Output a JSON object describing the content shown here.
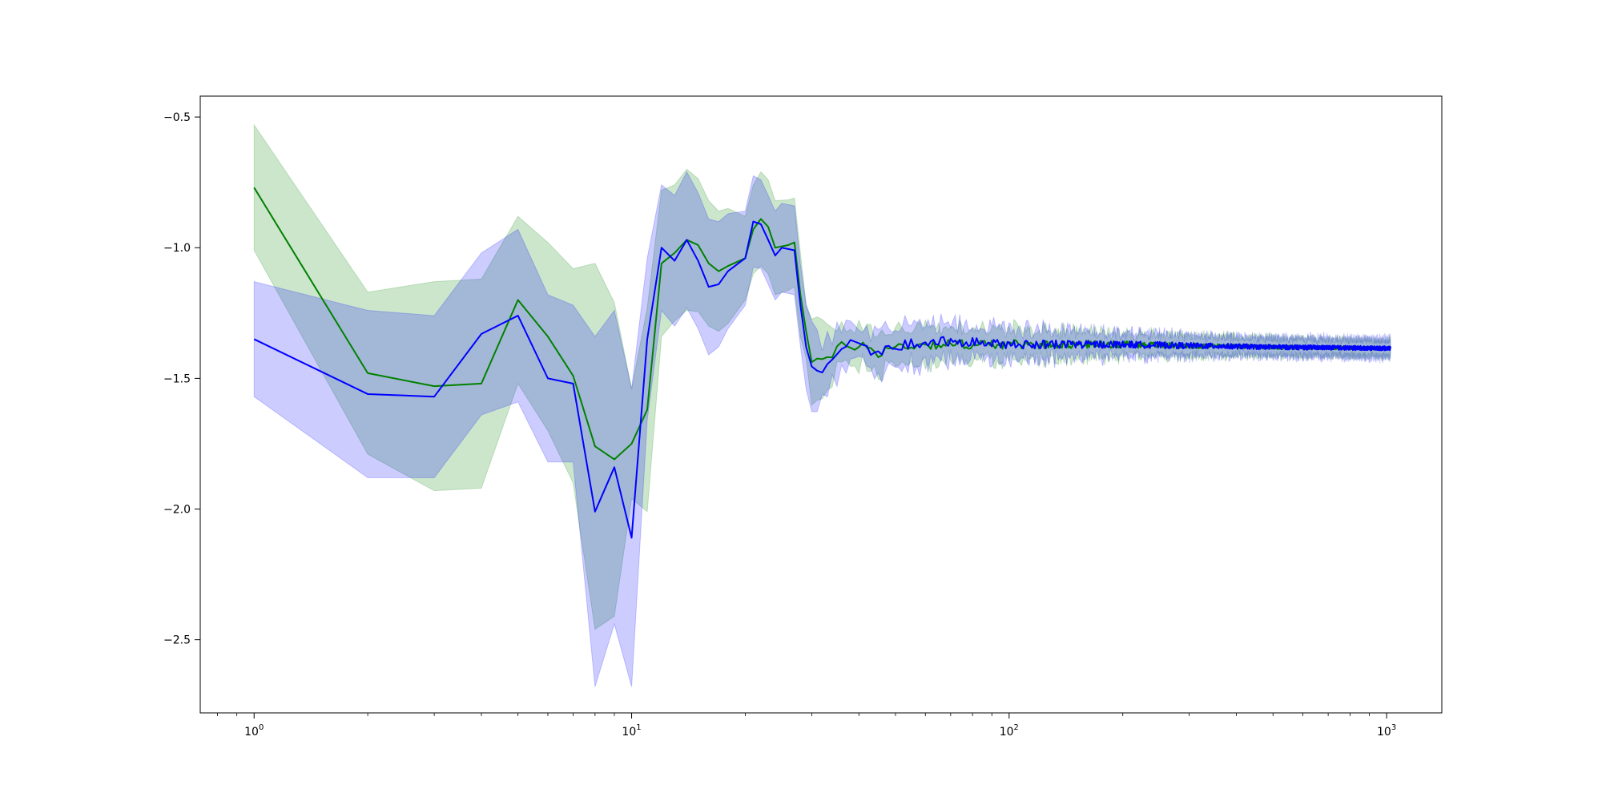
{
  "chart_data": {
    "type": "line",
    "title": "",
    "xlabel": "",
    "ylabel": "",
    "xscale": "log",
    "xlim": [
      0.72,
      1400
    ],
    "ylim": [
      -2.78,
      -0.42
    ],
    "grid": false,
    "legend": "none",
    "x_ticks": [
      {
        "value": 1,
        "base": "10",
        "exp": "0"
      },
      {
        "value": 10,
        "base": "10",
        "exp": "1"
      },
      {
        "value": 100,
        "base": "10",
        "exp": "2"
      },
      {
        "value": 1000,
        "base": "10",
        "exp": "3"
      }
    ],
    "y_ticks": [
      {
        "value": -0.5,
        "label": "−0.5"
      },
      {
        "value": -1.0,
        "label": "−1.0"
      },
      {
        "value": -1.5,
        "label": "−1.5"
      },
      {
        "value": -2.0,
        "label": "−2.0"
      },
      {
        "value": -2.5,
        "label": "−2.5"
      }
    ],
    "noise_tail": {
      "x_start": 28,
      "x_end": 1024,
      "step": 1
    },
    "series": [
      {
        "color": "#008000",
        "band_color": "#008000",
        "band_opacity": 0.2,
        "key_points": [
          [
            1,
            -0.77
          ],
          [
            2,
            -1.48
          ],
          [
            3,
            -1.53
          ],
          [
            4,
            -1.52
          ],
          [
            5,
            -1.2
          ],
          [
            6,
            -1.34
          ],
          [
            7,
            -1.49
          ],
          [
            8,
            -1.76
          ],
          [
            9,
            -1.81
          ],
          [
            10,
            -1.75
          ],
          [
            11,
            -1.62
          ],
          [
            12,
            -1.06
          ],
          [
            13,
            -1.02
          ],
          [
            14,
            -0.97
          ],
          [
            15,
            -0.99
          ],
          [
            16,
            -1.06
          ],
          [
            17,
            -1.09
          ],
          [
            18,
            -1.07
          ],
          [
            20,
            -1.04
          ],
          [
            21,
            -0.93
          ],
          [
            22,
            -0.89
          ],
          [
            23,
            -0.92
          ],
          [
            24,
            -1.0
          ],
          [
            26,
            -0.99
          ],
          [
            27,
            -0.98
          ],
          [
            28,
            -1.18
          ],
          [
            29,
            -1.31
          ],
          [
            30,
            -1.42
          ],
          [
            32,
            -1.43
          ],
          [
            34,
            -1.42
          ],
          [
            36,
            -1.38
          ],
          [
            40,
            -1.37
          ],
          [
            45,
            -1.4
          ],
          [
            50,
            -1.38
          ],
          [
            60,
            -1.37
          ],
          [
            80,
            -1.37
          ],
          [
            100,
            -1.37
          ],
          [
            150,
            -1.37
          ],
          [
            200,
            -1.37
          ],
          [
            300,
            -1.375
          ],
          [
            500,
            -1.38
          ],
          [
            1024,
            -1.385
          ]
        ],
        "band_width": [
          [
            1,
            0.24
          ],
          [
            2,
            0.31
          ],
          [
            3,
            0.4
          ],
          [
            4,
            0.4
          ],
          [
            5,
            0.32
          ],
          [
            6,
            0.36
          ],
          [
            7,
            0.41
          ],
          [
            8,
            0.7
          ],
          [
            9,
            0.6
          ],
          [
            10,
            0.21
          ],
          [
            11,
            0.39
          ],
          [
            12,
            0.28
          ],
          [
            13,
            0.26
          ],
          [
            14,
            0.27
          ],
          [
            16,
            0.24
          ],
          [
            18,
            0.22
          ],
          [
            20,
            0.16
          ],
          [
            22,
            0.18
          ],
          [
            24,
            0.18
          ],
          [
            27,
            0.17
          ],
          [
            30,
            0.14
          ],
          [
            35,
            0.08
          ],
          [
            50,
            0.07
          ],
          [
            100,
            0.055
          ],
          [
            200,
            0.045
          ],
          [
            400,
            0.035
          ],
          [
            1024,
            0.03
          ]
        ],
        "noise_amp": [
          [
            28,
            0.025
          ],
          [
            60,
            0.02
          ],
          [
            150,
            0.015
          ],
          [
            400,
            0.008
          ],
          [
            1024,
            0.006
          ]
        ]
      },
      {
        "color": "#0000ff",
        "band_color": "#0000ff",
        "band_opacity": 0.2,
        "key_points": [
          [
            1,
            -1.35
          ],
          [
            2,
            -1.56
          ],
          [
            3,
            -1.57
          ],
          [
            4,
            -1.33
          ],
          [
            5,
            -1.26
          ],
          [
            6,
            -1.5
          ],
          [
            7,
            -1.52
          ],
          [
            8,
            -2.01
          ],
          [
            9,
            -1.84
          ],
          [
            10,
            -2.11
          ],
          [
            11,
            -1.35
          ],
          [
            12,
            -1.0
          ],
          [
            13,
            -1.05
          ],
          [
            14,
            -0.97
          ],
          [
            15,
            -1.05
          ],
          [
            16,
            -1.15
          ],
          [
            17,
            -1.14
          ],
          [
            18,
            -1.09
          ],
          [
            20,
            -1.04
          ],
          [
            21,
            -0.9
          ],
          [
            22,
            -0.91
          ],
          [
            23,
            -0.97
          ],
          [
            24,
            -1.03
          ],
          [
            25,
            -1.0
          ],
          [
            27,
            -1.01
          ],
          [
            28,
            -1.22
          ],
          [
            29,
            -1.36
          ],
          [
            30,
            -1.46
          ],
          [
            31,
            -1.47
          ],
          [
            33,
            -1.44
          ],
          [
            36,
            -1.38
          ],
          [
            40,
            -1.37
          ],
          [
            45,
            -1.41
          ],
          [
            50,
            -1.38
          ],
          [
            60,
            -1.36
          ],
          [
            80,
            -1.36
          ],
          [
            100,
            -1.37
          ],
          [
            150,
            -1.37
          ],
          [
            200,
            -1.37
          ],
          [
            300,
            -1.375
          ],
          [
            500,
            -1.38
          ],
          [
            1024,
            -1.385
          ]
        ],
        "band_width": [
          [
            1,
            0.22
          ],
          [
            2,
            0.32
          ],
          [
            3,
            0.31
          ],
          [
            4,
            0.31
          ],
          [
            5,
            0.33
          ],
          [
            6,
            0.32
          ],
          [
            7,
            0.3
          ],
          [
            8,
            0.67
          ],
          [
            9,
            0.6
          ],
          [
            10,
            0.57
          ],
          [
            11,
            0.31
          ],
          [
            12,
            0.24
          ],
          [
            13,
            0.25
          ],
          [
            14,
            0.26
          ],
          [
            16,
            0.26
          ],
          [
            18,
            0.22
          ],
          [
            20,
            0.18
          ],
          [
            22,
            0.17
          ],
          [
            24,
            0.17
          ],
          [
            27,
            0.17
          ],
          [
            30,
            0.13
          ],
          [
            35,
            0.09
          ],
          [
            50,
            0.08
          ],
          [
            100,
            0.06
          ],
          [
            200,
            0.045
          ],
          [
            400,
            0.035
          ],
          [
            1024,
            0.035
          ]
        ],
        "noise_amp": [
          [
            28,
            0.025
          ],
          [
            60,
            0.02
          ],
          [
            150,
            0.015
          ],
          [
            400,
            0.01
          ],
          [
            1024,
            0.008
          ]
        ]
      }
    ]
  }
}
